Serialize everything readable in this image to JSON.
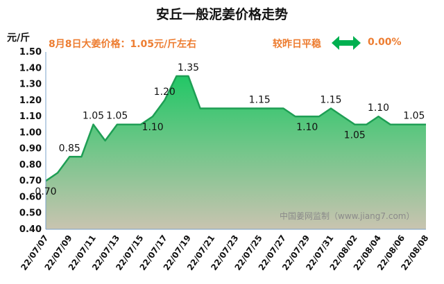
{
  "header": {
    "title": "安丘一般泥姜价格走势",
    "price_note": "8月8日大姜价格：1.05元/斤左右",
    "compare_label": "较昨日平稳",
    "compare_value": "0.00%",
    "compare_icon": "double-arrow-icon",
    "accent_color": "#ed7d31",
    "arrow_color": "#00b050"
  },
  "watermark": "中国姜网监制（www.jiang7.com）",
  "chart_data": {
    "type": "area",
    "title": "安丘一般泥姜价格走势",
    "ylabel": "元/斤",
    "xlabel": "",
    "ylim": [
      0.4,
      1.5
    ],
    "yticks": [
      "0.40",
      "0.50",
      "0.60",
      "0.70",
      "0.80",
      "0.90",
      "1.00",
      "1.10",
      "1.20",
      "1.30",
      "1.40",
      "1.50"
    ],
    "x": [
      "22/07/07",
      "22/07/08",
      "22/07/09",
      "22/07/10",
      "22/07/11",
      "22/07/12",
      "22/07/13",
      "22/07/14",
      "22/07/15",
      "22/07/16",
      "22/07/17",
      "22/07/18",
      "22/07/19",
      "22/07/20",
      "22/07/21",
      "22/07/22",
      "22/07/23",
      "22/07/24",
      "22/07/25",
      "22/07/26",
      "22/07/27",
      "22/07/28",
      "22/07/29",
      "22/07/30",
      "22/07/31",
      "22/08/01",
      "22/08/02",
      "22/08/03",
      "22/08/04",
      "22/08/05",
      "22/08/06",
      "22/08/07",
      "22/08/08"
    ],
    "xtick_labels": [
      "22/07/07",
      "22/07/09",
      "22/07/11",
      "22/07/13",
      "22/07/15",
      "22/07/17",
      "22/07/19",
      "22/07/21",
      "22/07/23",
      "22/07/25",
      "22/07/27",
      "22/07/29",
      "22/07/31",
      "22/08/02",
      "22/08/04",
      "22/08/06",
      "22/08/08"
    ],
    "values": [
      0.7,
      0.75,
      0.85,
      0.85,
      1.05,
      0.95,
      1.05,
      1.05,
      1.05,
      1.1,
      1.2,
      1.35,
      1.35,
      1.15,
      1.15,
      1.15,
      1.15,
      1.15,
      1.15,
      1.15,
      1.15,
      1.1,
      1.1,
      1.1,
      1.15,
      1.1,
      1.05,
      1.05,
      1.1,
      1.05,
      1.05,
      1.05,
      1.05
    ],
    "data_labels": [
      {
        "x": "22/07/07",
        "text": "0.70",
        "pos": "below"
      },
      {
        "x": "22/07/09",
        "text": "0.85",
        "pos": "above"
      },
      {
        "x": "22/07/11",
        "text": "1.05",
        "pos": "above"
      },
      {
        "x": "22/07/13",
        "text": "1.05",
        "pos": "above"
      },
      {
        "x": "22/07/17",
        "text": "1.20",
        "pos": "above"
      },
      {
        "x": "22/07/16",
        "text": "1.10",
        "pos": "below"
      },
      {
        "x": "22/07/19",
        "text": "1.35",
        "pos": "above"
      },
      {
        "x": "22/07/25",
        "text": "1.15",
        "pos": "above"
      },
      {
        "x": "22/07/29",
        "text": "1.10",
        "pos": "below"
      },
      {
        "x": "22/07/31",
        "text": "1.15",
        "pos": "above"
      },
      {
        "x": "22/08/02",
        "text": "1.05",
        "pos": "below"
      },
      {
        "x": "22/08/04",
        "text": "1.10",
        "pos": "above"
      },
      {
        "x": "22/08/07",
        "text": "1.05",
        "pos": "above"
      }
    ],
    "grid": false,
    "legend": "none",
    "line_color": "#1e9e54",
    "fill_top_color": "#22c766",
    "fill_bottom_color": "#c9c4b0"
  }
}
